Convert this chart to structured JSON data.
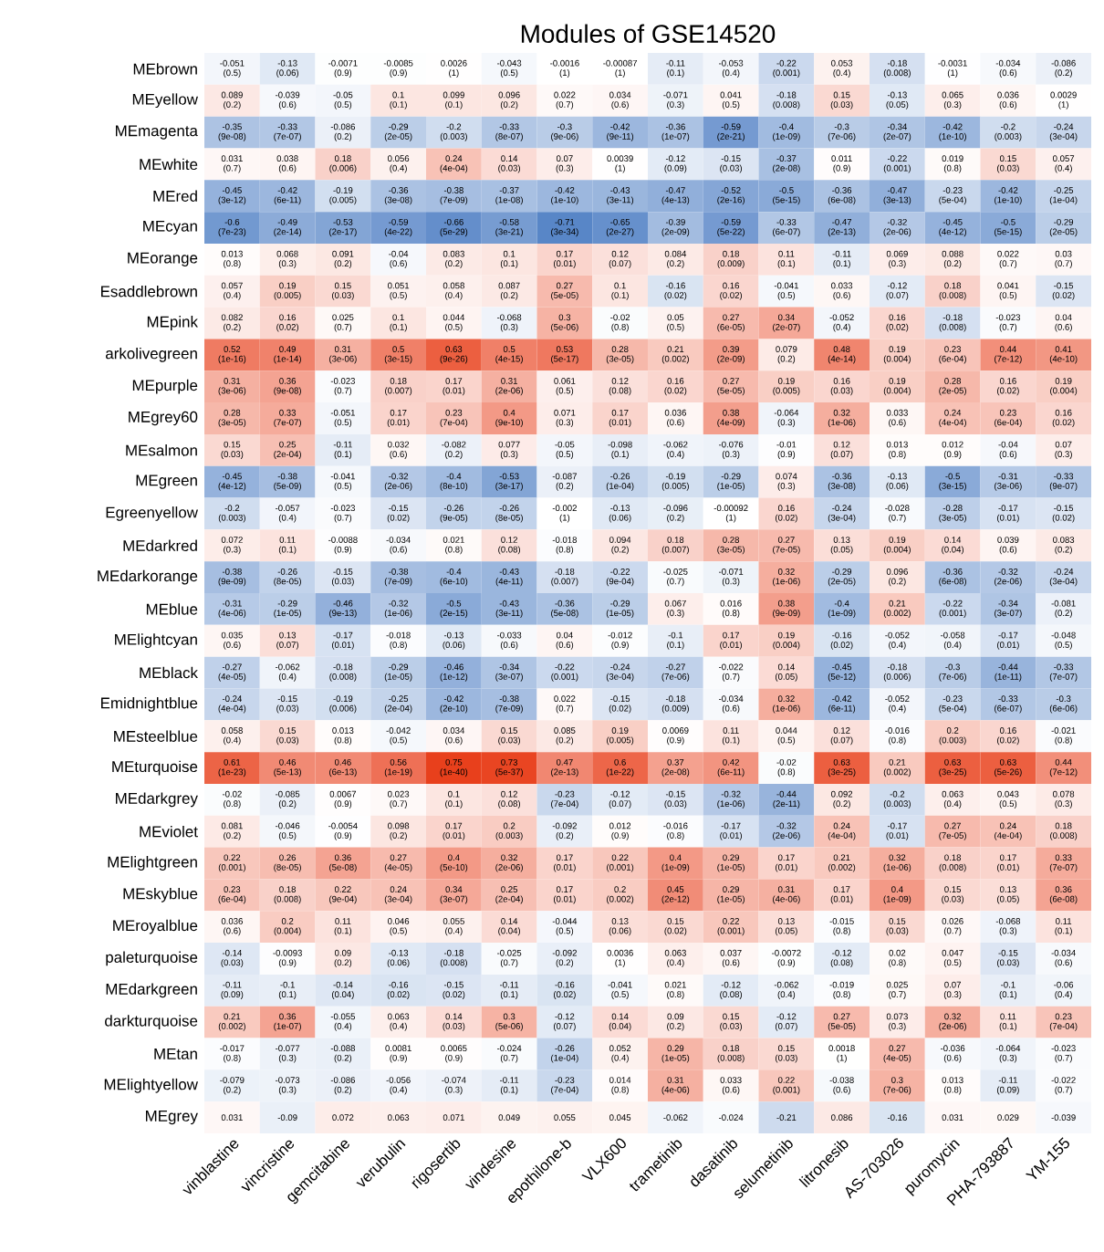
{
  "chart_data": {
    "type": "heatmap",
    "title": "Modules of GSE14520",
    "data_labels": true,
    "categories": [
      "vinblastine",
      "vincristine",
      "gemcitabine",
      "verubulin",
      "rigosertib",
      "vindesine",
      "epothilone-b",
      "VLX600",
      "trametinib",
      "dasatinib",
      "selumetinib",
      "litronesib",
      "AS-703026",
      "puromycin",
      "PHA-793887",
      "YM-155"
    ],
    "y_categories": [
      "MEbrown",
      "MEyellow",
      "MEmagenta",
      "MEwhite",
      "MEred",
      "MEcyan",
      "MEorange",
      "Esaddlebrown",
      "MEpink",
      "arkolivegreen",
      "MEpurple",
      "MEgrey60",
      "MEsalmon",
      "MEgreen",
      "Egreenyellow",
      "MEdarkred",
      "MEdarkorange",
      "MEblue",
      "MElightcyan",
      "MEblack",
      "Emidnightblue",
      "MEsteelblue",
      "MEturquoise",
      "MEdarkgrey",
      "MEviolet",
      "MElightgreen",
      "MEskyblue",
      "MEroyalblue",
      "paleturquoise",
      "MEdarkgreen",
      "darkturquoise",
      "MEtan",
      "MElightyellow",
      "MEgrey"
    ],
    "cells": [
      [
        -0.051,
        -0.13,
        -0.0071,
        -0.0085,
        0.0026,
        -0.043,
        -0.0016,
        -0.00087,
        -0.11,
        -0.053,
        -0.22,
        0.053,
        -0.18,
        -0.0031,
        -0.034,
        -0.086
      ],
      [
        0.089,
        -0.039,
        -0.05,
        0.1,
        0.099,
        0.096,
        0.022,
        0.034,
        -0.071,
        0.041,
        -0.18,
        0.15,
        -0.13,
        0.065,
        0.036,
        0.0029
      ],
      [
        -0.35,
        -0.33,
        -0.086,
        -0.29,
        -0.2,
        -0.33,
        -0.3,
        -0.42,
        -0.36,
        -0.59,
        -0.4,
        -0.3,
        -0.34,
        -0.42,
        -0.2,
        -0.24
      ],
      [
        0.031,
        0.038,
        0.18,
        0.056,
        0.24,
        0.14,
        0.07,
        0.0039,
        -0.12,
        -0.15,
        -0.37,
        0.011,
        -0.22,
        0.019,
        0.15,
        0.057
      ],
      [
        -0.45,
        -0.42,
        -0.19,
        -0.36,
        -0.38,
        -0.37,
        -0.42,
        -0.43,
        -0.47,
        -0.52,
        -0.5,
        -0.36,
        -0.47,
        -0.23,
        -0.42,
        -0.25
      ],
      [
        -0.6,
        -0.49,
        -0.53,
        -0.59,
        -0.66,
        -0.58,
        -0.71,
        -0.65,
        -0.39,
        -0.59,
        -0.33,
        -0.47,
        -0.32,
        -0.45,
        -0.5,
        -0.29
      ],
      [
        0.013,
        0.068,
        0.091,
        -0.04,
        0.083,
        0.1,
        0.17,
        0.12,
        0.084,
        0.18,
        0.11,
        -0.11,
        0.069,
        0.088,
        0.022,
        0.03
      ],
      [
        0.057,
        0.19,
        0.15,
        0.051,
        0.058,
        0.087,
        0.27,
        0.1,
        -0.16,
        0.16,
        -0.041,
        0.033,
        -0.12,
        0.18,
        0.041,
        -0.15
      ],
      [
        0.082,
        0.16,
        0.025,
        0.1,
        0.044,
        -0.068,
        0.3,
        -0.02,
        0.05,
        0.27,
        0.34,
        -0.052,
        0.16,
        -0.18,
        -0.023,
        0.04
      ],
      [
        0.52,
        0.49,
        0.31,
        0.5,
        0.63,
        0.5,
        0.53,
        0.28,
        0.21,
        0.39,
        0.079,
        0.48,
        0.19,
        0.23,
        0.44,
        0.41
      ],
      [
        0.31,
        0.36,
        -0.023,
        0.18,
        0.17,
        0.31,
        0.061,
        0.12,
        0.16,
        0.27,
        0.19,
        0.16,
        0.19,
        0.28,
        0.16,
        0.19
      ],
      [
        0.28,
        0.33,
        -0.051,
        0.17,
        0.23,
        0.4,
        0.071,
        0.17,
        0.036,
        0.38,
        -0.064,
        0.32,
        0.033,
        0.24,
        0.23,
        0.16
      ],
      [
        0.15,
        0.25,
        -0.11,
        0.032,
        -0.082,
        0.077,
        -0.05,
        -0.098,
        -0.062,
        -0.076,
        -0.01,
        0.12,
        0.013,
        0.012,
        -0.04,
        0.07
      ],
      [
        -0.45,
        -0.38,
        -0.041,
        -0.32,
        -0.4,
        -0.53,
        -0.087,
        -0.26,
        -0.19,
        -0.29,
        0.074,
        -0.36,
        -0.13,
        -0.5,
        -0.31,
        -0.33
      ],
      [
        -0.2,
        -0.057,
        -0.023,
        -0.15,
        -0.26,
        -0.26,
        -0.002,
        -0.13,
        -0.096,
        -0.00092,
        0.16,
        -0.24,
        -0.028,
        -0.28,
        -0.17,
        -0.15
      ],
      [
        0.072,
        0.11,
        -0.0088,
        -0.034,
        0.021,
        0.12,
        -0.018,
        0.094,
        0.18,
        0.28,
        0.27,
        0.13,
        0.19,
        0.14,
        0.039,
        0.083
      ],
      [
        -0.38,
        -0.26,
        -0.15,
        -0.38,
        -0.4,
        -0.43,
        -0.18,
        -0.22,
        -0.025,
        -0.071,
        0.32,
        -0.29,
        0.096,
        -0.36,
        -0.32,
        -0.24
      ],
      [
        -0.31,
        -0.29,
        -0.46,
        -0.32,
        -0.5,
        -0.43,
        -0.36,
        -0.29,
        0.067,
        0.016,
        0.38,
        -0.4,
        0.21,
        -0.22,
        -0.34,
        -0.081
      ],
      [
        0.035,
        0.13,
        -0.17,
        -0.018,
        -0.13,
        -0.033,
        0.04,
        -0.012,
        -0.1,
        0.17,
        0.19,
        -0.16,
        -0.052,
        -0.058,
        -0.17,
        -0.048
      ],
      [
        -0.27,
        -0.062,
        -0.18,
        -0.29,
        -0.46,
        -0.34,
        -0.22,
        -0.24,
        -0.27,
        -0.022,
        0.14,
        -0.45,
        -0.18,
        -0.3,
        -0.44,
        -0.33
      ],
      [
        -0.24,
        -0.15,
        -0.19,
        -0.25,
        -0.42,
        -0.38,
        0.022,
        -0.15,
        -0.18,
        -0.034,
        0.32,
        -0.42,
        -0.052,
        -0.23,
        -0.33,
        -0.3
      ],
      [
        0.058,
        0.15,
        0.013,
        -0.042,
        0.034,
        0.15,
        0.085,
        0.19,
        0.0069,
        0.11,
        0.044,
        0.12,
        -0.016,
        0.2,
        0.16,
        -0.021
      ],
      [
        0.61,
        0.46,
        0.46,
        0.56,
        0.75,
        0.73,
        0.47,
        0.6,
        0.37,
        0.42,
        -0.02,
        0.63,
        0.21,
        0.63,
        0.63,
        0.44
      ],
      [
        -0.02,
        -0.085,
        0.0067,
        0.023,
        0.1,
        0.12,
        -0.23,
        -0.12,
        -0.15,
        -0.32,
        -0.44,
        0.092,
        -0.2,
        0.063,
        0.043,
        0.078
      ],
      [
        0.081,
        -0.046,
        -0.0054,
        0.098,
        0.17,
        0.2,
        -0.092,
        0.012,
        -0.016,
        -0.17,
        -0.32,
        0.24,
        -0.17,
        0.27,
        0.24,
        0.18
      ],
      [
        0.22,
        0.26,
        0.36,
        0.27,
        0.4,
        0.32,
        0.17,
        0.22,
        0.4,
        0.29,
        0.17,
        0.21,
        0.32,
        0.18,
        0.17,
        0.33
      ],
      [
        0.23,
        0.18,
        0.22,
        0.24,
        0.34,
        0.25,
        0.17,
        0.2,
        0.45,
        0.29,
        0.31,
        0.17,
        0.4,
        0.15,
        0.13,
        0.36
      ],
      [
        0.036,
        0.2,
        0.11,
        0.046,
        0.055,
        0.14,
        -0.044,
        0.13,
        0.15,
        0.22,
        0.13,
        -0.015,
        0.15,
        0.026,
        -0.068,
        0.11
      ],
      [
        -0.14,
        -0.0093,
        0.09,
        -0.13,
        -0.18,
        -0.025,
        -0.092,
        0.0036,
        0.063,
        0.037,
        -0.0072,
        -0.12,
        0.02,
        0.047,
        -0.15,
        -0.034
      ],
      [
        -0.11,
        -0.1,
        -0.14,
        -0.16,
        -0.15,
        -0.11,
        -0.16,
        -0.041,
        0.021,
        -0.12,
        -0.062,
        -0.019,
        0.025,
        0.07,
        -0.1,
        -0.06
      ],
      [
        0.21,
        0.36,
        -0.055,
        0.063,
        0.14,
        0.3,
        -0.12,
        0.14,
        0.09,
        0.15,
        -0.12,
        0.27,
        0.073,
        0.32,
        0.11,
        0.23
      ],
      [
        -0.017,
        -0.077,
        -0.088,
        0.0081,
        0.0065,
        -0.024,
        -0.26,
        0.052,
        0.29,
        0.18,
        0.15,
        0.0018,
        0.27,
        -0.036,
        -0.064,
        -0.023
      ],
      [
        -0.079,
        -0.073,
        -0.086,
        -0.056,
        -0.074,
        -0.11,
        -0.23,
        0.014,
        0.31,
        0.033,
        0.22,
        -0.038,
        0.3,
        0.013,
        -0.11,
        -0.022
      ],
      [
        0.031,
        -0.09,
        0.072,
        0.063,
        0.071,
        0.049,
        0.055,
        0.045,
        -0.062,
        -0.024,
        -0.21,
        0.086,
        -0.16,
        0.031,
        0.029,
        -0.039
      ]
    ],
    "annotations": [
      "(0.5)",
      "(0.06)",
      "(0.9)",
      "(0.9)",
      "(1)",
      "(0.5)",
      "(1)",
      "(1)",
      "(0.1)",
      "(0.4)",
      "(0.001)",
      "(0.4)",
      "(0.008)",
      "(1)",
      "(0.6)",
      "(0.2)",
      "(0.2)",
      "(0.6)",
      "(0.5)",
      "(0.1)",
      "(0.1)",
      "(0.2)",
      "(0.7)",
      "(0.6)",
      "(0.3)",
      "(0.5)",
      "(0.008)",
      "(0.03)",
      "(0.05)",
      "(0.3)",
      "(0.6)",
      "(1)",
      "(9e-08)",
      "(7e-07)",
      "(0.2)",
      "(2e-05)",
      "(0.003)",
      "(8e-07)",
      "(9e-06)",
      "(9e-11)",
      "(1e-07)",
      "(2e-21)",
      "(1e-09)",
      "(7e-06)",
      "(2e-07)",
      "(1e-10)",
      "(0.003)",
      "(3e-04)",
      "(0.7)",
      "(0.6)",
      "(0.006)",
      "(0.4)",
      "(4e-04)",
      "(0.03)",
      "(0.3)",
      "(1)",
      "(0.09)",
      "(0.03)",
      "(2e-08)",
      "(0.9)",
      "(0.001)",
      "(0.8)",
      "(0.03)",
      "(0.4)",
      "(3e-12)",
      "(6e-11)",
      "(0.005)",
      "(3e-08)",
      "(7e-09)",
      "(1e-08)",
      "(1e-10)",
      "(3e-11)",
      "(4e-13)",
      "(2e-16)",
      "(5e-15)",
      "(6e-08)",
      "(3e-13)",
      "(5e-04)",
      "(1e-10)",
      "(1e-04)",
      "(7e-23)",
      "(2e-14)",
      "(2e-17)",
      "(4e-22)",
      "(5e-29)",
      "(3e-21)",
      "(3e-34)",
      "(2e-27)",
      "(2e-09)",
      "(5e-22)",
      "(6e-07)",
      "(2e-13)",
      "(2e-06)",
      "(4e-12)",
      "(5e-15)",
      "(2e-05)",
      "(0.8)",
      "(0.3)",
      "(0.2)",
      "(0.6)",
      "(0.2)",
      "(0.1)",
      "(0.01)",
      "(0.07)",
      "(0.2)",
      "(0.009)",
      "(0.1)",
      "(0.1)",
      "(0.3)",
      "(0.2)",
      "(0.7)",
      "(0.7)",
      "(0.4)",
      "(0.005)",
      "(0.03)",
      "(0.5)",
      "(0.4)",
      "(0.2)",
      "(5e-05)",
      "(0.1)",
      "(0.02)",
      "(0.02)",
      "(0.5)",
      "(0.6)",
      "(0.07)",
      "(0.008)",
      "(0.5)",
      "(0.02)",
      "(0.2)",
      "(0.02)",
      "(0.7)",
      "(0.1)",
      "(0.5)",
      "(0.3)",
      "(5e-06)",
      "(0.8)",
      "(0.5)",
      "(6e-05)",
      "(2e-07)",
      "(0.4)",
      "(0.02)",
      "(0.008)",
      "(0.7)",
      "(0.6)",
      "(1e-16)",
      "(1e-14)",
      "(3e-06)",
      "(3e-15)",
      "(9e-26)",
      "(4e-15)",
      "(5e-17)",
      "(3e-05)",
      "(0.002)",
      "(2e-09)",
      "(0.2)",
      "(4e-14)",
      "(0.004)",
      "(6e-04)",
      "(7e-12)",
      "(4e-10)",
      "(3e-06)",
      "(9e-08)",
      "(0.7)",
      "(0.007)",
      "(0.01)",
      "(2e-06)",
      "(0.5)",
      "(0.08)",
      "(0.02)",
      "(5e-05)",
      "(0.005)",
      "(0.03)",
      "(0.004)",
      "(2e-05)",
      "(0.02)",
      "(0.004)",
      "(3e-05)",
      "(7e-07)",
      "(0.5)",
      "(0.01)",
      "(7e-04)",
      "(9e-10)",
      "(0.3)",
      "(0.01)",
      "(0.6)",
      "(4e-09)",
      "(0.3)",
      "(1e-06)",
      "(0.6)",
      "(4e-04)",
      "(6e-04)",
      "(0.02)",
      "(0.03)",
      "(2e-04)",
      "(0.1)",
      "(0.6)",
      "(0.2)",
      "(0.3)",
      "(0.5)",
      "(0.1)",
      "(0.4)",
      "(0.3)",
      "(0.9)",
      "(0.07)",
      "(0.8)",
      "(0.9)",
      "(0.6)",
      "(0.3)",
      "(4e-12)",
      "(5e-09)",
      "(0.5)",
      "(2e-06)",
      "(8e-10)",
      "(3e-17)",
      "(0.2)",
      "(1e-04)",
      "(0.005)",
      "(1e-05)",
      "(0.3)",
      "(3e-08)",
      "(0.06)",
      "(3e-15)",
      "(3e-06)",
      "(9e-07)",
      "(0.003)",
      "(0.4)",
      "(0.7)",
      "(0.02)",
      "(9e-05)",
      "(8e-05)",
      "(1)",
      "(0.06)",
      "(0.2)",
      "(1)",
      "(0.02)",
      "(3e-04)",
      "(0.7)",
      "(3e-05)",
      "(0.01)",
      "(0.02)",
      "(0.3)",
      "(0.1)",
      "(0.9)",
      "(0.6)",
      "(0.8)",
      "(0.08)",
      "(0.8)",
      "(0.2)",
      "(0.007)",
      "(3e-05)",
      "(7e-05)",
      "(0.05)",
      "(0.004)",
      "(0.04)",
      "(0.6)",
      "(0.2)",
      "(9e-09)",
      "(8e-05)",
      "(0.03)",
      "(7e-09)",
      "(6e-10)",
      "(4e-11)",
      "(0.007)",
      "(9e-04)",
      "(0.7)",
      "(0.3)",
      "(1e-06)",
      "(2e-05)",
      "(0.2)",
      "(6e-08)",
      "(2e-06)",
      "(3e-04)",
      "(4e-06)",
      "(1e-05)",
      "(9e-13)",
      "(1e-06)",
      "(2e-15)",
      "(3e-11)",
      "(5e-08)",
      "(1e-05)",
      "(0.3)",
      "(0.8)",
      "(9e-09)",
      "(1e-09)",
      "(0.002)",
      "(0.001)",
      "(3e-07)",
      "(0.2)",
      "(0.6)",
      "(0.07)",
      "(0.01)",
      "(0.8)",
      "(0.06)",
      "(0.6)",
      "(0.6)",
      "(0.9)",
      "(0.1)",
      "(0.01)",
      "(0.004)",
      "(0.02)",
      "(0.4)",
      "(0.4)",
      "(0.01)",
      "(0.5)",
      "(4e-05)",
      "(0.4)",
      "(0.008)",
      "(1e-05)",
      "(1e-12)",
      "(3e-07)",
      "(0.001)",
      "(3e-04)",
      "(7e-06)",
      "(0.7)",
      "(0.05)",
      "(5e-12)",
      "(0.006)",
      "(7e-06)",
      "(1e-11)",
      "(7e-07)",
      "(4e-04)",
      "(0.03)",
      "(0.006)",
      "(2e-04)",
      "(2e-10)",
      "(7e-09)",
      "(0.7)",
      "(0.02)",
      "(0.009)",
      "(0.6)",
      "(1e-06)",
      "(6e-11)",
      "(0.4)",
      "(5e-04)",
      "(6e-07)",
      "(6e-06)",
      "(0.4)",
      "(0.03)",
      "(0.8)",
      "(0.5)",
      "(0.6)",
      "(0.03)",
      "(0.2)",
      "(0.005)",
      "(0.9)",
      "(0.1)",
      "(0.5)",
      "(0.07)",
      "(0.8)",
      "(0.003)",
      "(0.02)",
      "(0.8)",
      "(1e-23)",
      "(5e-13)",
      "(6e-13)",
      "(1e-19)",
      "(1e-40)",
      "(5e-37)",
      "(2e-13)",
      "(1e-22)",
      "(2e-08)",
      "(6e-11)",
      "(0.8)",
      "(3e-25)",
      "(0.002)",
      "(3e-25)",
      "(5e-26)",
      "(7e-12)",
      "(0.8)",
      "(0.2)",
      "(0.9)",
      "(0.7)",
      "(0.1)",
      "(0.08)",
      "(7e-04)",
      "(0.07)",
      "(0.03)",
      "(1e-06)",
      "(2e-11)",
      "(0.2)",
      "(0.003)",
      "(0.4)",
      "(0.5)",
      "(0.3)",
      "(0.2)",
      "(0.5)",
      "(0.9)",
      "(0.2)",
      "(0.01)",
      "(0.003)",
      "(0.2)",
      "(0.9)",
      "(0.8)",
      "(0.01)",
      "(2e-06)",
      "(4e-04)",
      "(0.01)",
      "(7e-05)",
      "(4e-04)",
      "(0.008)",
      "(0.001)",
      "(8e-05)",
      "(5e-08)",
      "(4e-05)",
      "(5e-10)",
      "(2e-06)",
      "(0.01)",
      "(0.001)",
      "(1e-09)",
      "(1e-05)",
      "(0.01)",
      "(0.002)",
      "(1e-06)",
      "(0.008)",
      "(0.01)",
      "(7e-07)",
      "(6e-04)",
      "(0.008)",
      "(9e-04)",
      "(3e-04)",
      "(3e-07)",
      "(2e-04)",
      "(0.01)",
      "(0.002)",
      "(2e-12)",
      "(1e-05)",
      "(4e-06)",
      "(0.01)",
      "(1e-09)",
      "(0.03)",
      "(0.05)",
      "(6e-08)",
      "(0.6)",
      "(0.004)",
      "(0.1)",
      "(0.5)",
      "(0.4)",
      "(0.04)",
      "(0.5)",
      "(0.06)",
      "(0.02)",
      "(0.001)",
      "(0.05)",
      "(0.8)",
      "(0.03)",
      "(0.7)",
      "(0.3)",
      "(0.1)",
      "(0.03)",
      "(0.9)",
      "(0.2)",
      "(0.06)",
      "(0.008)",
      "(0.7)",
      "(0.2)",
      "(1)",
      "(0.4)",
      "(0.6)",
      "(0.9)",
      "(0.08)",
      "(0.8)",
      "(0.5)",
      "(0.03)",
      "(0.6)",
      "(0.09)",
      "(0.1)",
      "(0.04)",
      "(0.02)",
      "(0.02)",
      "(0.1)",
      "(0.02)",
      "(0.5)",
      "(0.8)",
      "(0.08)",
      "(0.4)",
      "(0.8)",
      "(0.7)",
      "(0.3)",
      "(0.1)",
      "(0.4)",
      "(0.002)",
      "(1e-07)",
      "(0.4)",
      "(0.4)",
      "(0.03)",
      "(5e-06)",
      "(0.07)",
      "(0.04)",
      "(0.2)",
      "(0.03)",
      "(0.07)",
      "(5e-05)",
      "(0.3)",
      "(2e-06)",
      "(0.1)",
      "(7e-04)",
      "(0.8)",
      "(0.3)",
      "(0.2)",
      "(0.9)",
      "(0.9)",
      "(0.7)",
      "(1e-04)",
      "(0.4)",
      "(1e-05)",
      "(0.008)",
      "(0.03)",
      "(1)",
      "(4e-05)",
      "(0.6)",
      "(0.3)",
      "(0.7)",
      "(0.2)",
      "(0.3)",
      "(0.2)",
      "(0.4)",
      "(0.3)",
      "(0.1)",
      "(7e-04)",
      "(0.8)",
      "(4e-06)",
      "(0.6)",
      "(0.001)",
      "(0.6)",
      "(7e-06)",
      "(0.8)",
      "(0.09)",
      "(0.7)"
    ]
  }
}
